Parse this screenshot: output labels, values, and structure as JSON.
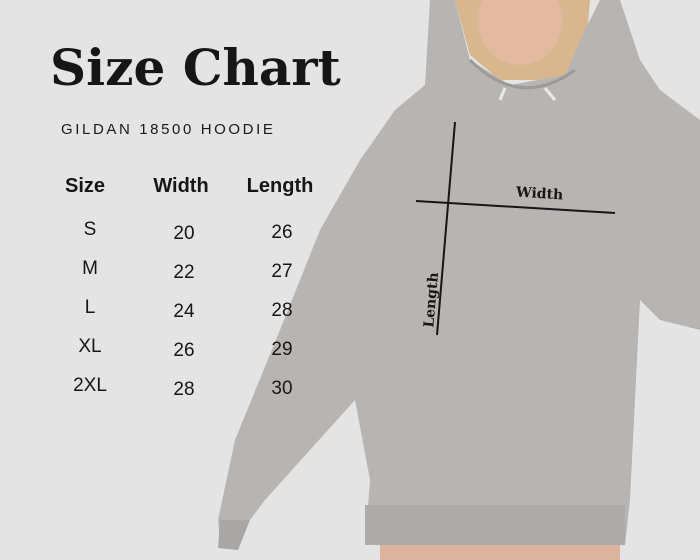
{
  "title": "Size Chart",
  "subtitle": "GILDAN 18500 HOODIE",
  "table": {
    "headers": [
      "Size",
      "Width",
      "Length"
    ],
    "rows": [
      [
        "S",
        "20",
        "26"
      ],
      [
        "M",
        "22",
        "27"
      ],
      [
        "L",
        "24",
        "28"
      ],
      [
        "XL",
        "26",
        "29"
      ],
      [
        "2XL",
        "28",
        "30"
      ]
    ]
  },
  "diagram": {
    "width_label": "Width",
    "length_label": "Length"
  },
  "colors": {
    "background": "#e4e4e4",
    "hoodie": "#b7b5b4",
    "text": "#161616"
  }
}
